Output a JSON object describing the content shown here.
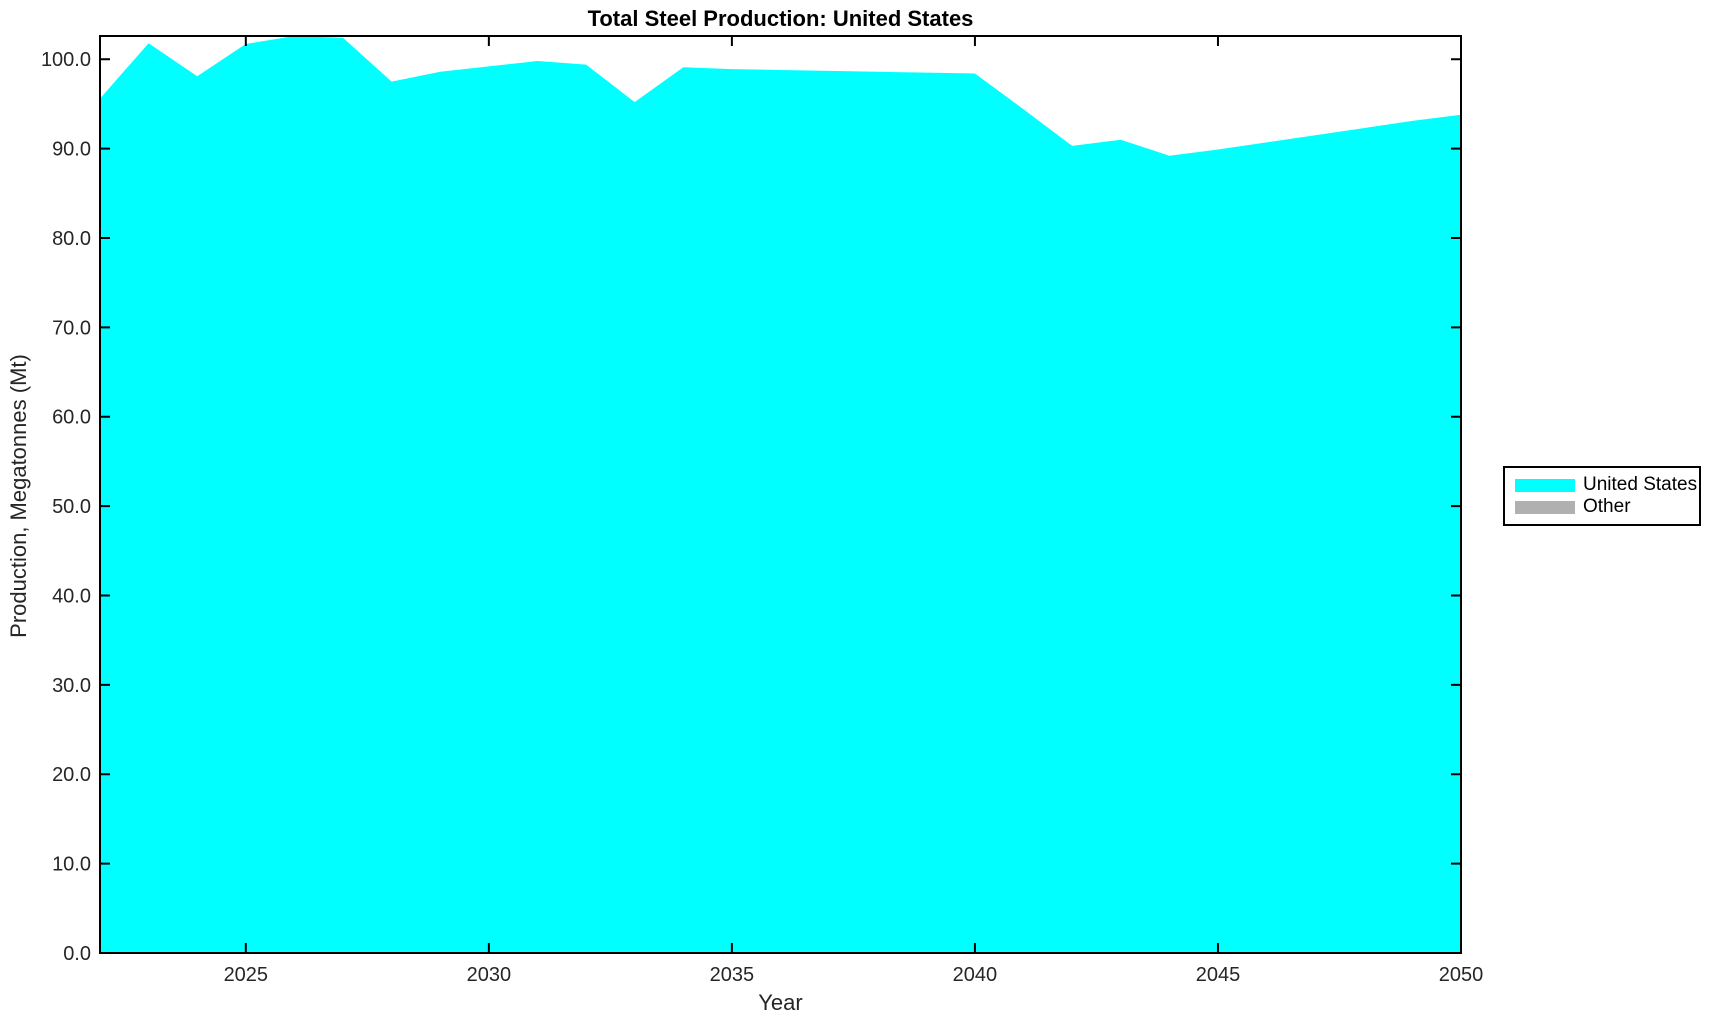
{
  "figure": {
    "background": "#ffffff",
    "axis_color": "#262626",
    "box_color": "#000000"
  },
  "chart_data": {
    "type": "area",
    "stacked": true,
    "title": "Total Steel Production: United States",
    "xlabel": "Year",
    "ylabel": "Production, Megatonnes (Mt)",
    "x": [
      2022,
      2023,
      2024,
      2025,
      2026,
      2027,
      2028,
      2029,
      2030,
      2031,
      2032,
      2033,
      2034,
      2035,
      2036,
      2037,
      2038,
      2039,
      2040,
      2041,
      2042,
      2043,
      2044,
      2045,
      2046,
      2047,
      2048,
      2049,
      2050
    ],
    "series": [
      {
        "name": "United States",
        "color": "#00ffff",
        "values": [
          95.6,
          101.8,
          98.1,
          101.7,
          102.6,
          102.4,
          97.5,
          98.6,
          99.2,
          99.8,
          99.4,
          95.2,
          99.1,
          98.9,
          98.8,
          98.7,
          98.6,
          98.5,
          98.4,
          94.4,
          90.3,
          91.0,
          89.2,
          89.9,
          90.7,
          91.5,
          92.3,
          93.1,
          93.8
        ]
      },
      {
        "name": "Other",
        "color": "#b0b0b0",
        "values": [
          0,
          0,
          0,
          0,
          0,
          0,
          0,
          0,
          0,
          0,
          0,
          0,
          0,
          0,
          0,
          0,
          0,
          0,
          0,
          0,
          0,
          0,
          0,
          0,
          0,
          0,
          0,
          0,
          0
        ]
      }
    ],
    "xlim": [
      2022,
      2050
    ],
    "ylim": [
      0,
      102.6
    ],
    "xticks": {
      "values": [
        2025,
        2030,
        2035,
        2040,
        2045,
        2050
      ],
      "labels": [
        "2025",
        "2030",
        "2035",
        "2040",
        "2045",
        "2050"
      ]
    },
    "yticks": {
      "values": [
        0,
        10,
        20,
        30,
        40,
        50,
        60,
        70,
        80,
        90,
        100
      ],
      "labels": [
        "0.0",
        "10.0",
        "20.0",
        "30.0",
        "40.0",
        "50.0",
        "60.0",
        "70.0",
        "80.0",
        "90.0",
        "100.0"
      ]
    },
    "grid": false,
    "legend": {
      "position": "outside-right",
      "entries": [
        {
          "label": "United States",
          "color": "#00ffff"
        },
        {
          "label": "Other",
          "color": "#b0b0b0"
        }
      ]
    }
  }
}
